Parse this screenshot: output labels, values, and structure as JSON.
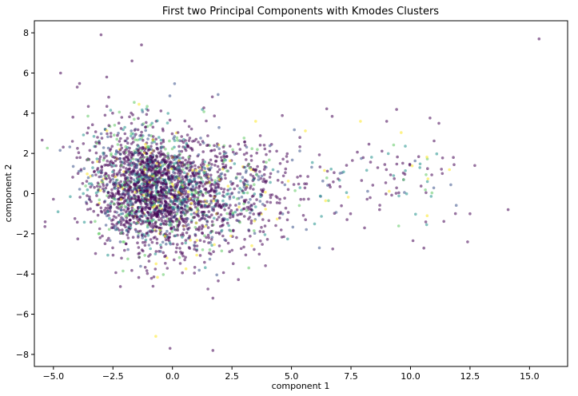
{
  "chart_data": {
    "type": "scatter",
    "title": "First two Principal Components with Kmodes Clusters",
    "xlabel": "component 1",
    "ylabel": "component 2",
    "xlim": [
      -5.8,
      16.6
    ],
    "ylim": [
      -8.6,
      8.6
    ],
    "xticks": [
      -5.0,
      -2.5,
      0.0,
      2.5,
      5.0,
      7.5,
      10.0,
      12.5,
      15.0
    ],
    "xtick_labels": [
      "−5.0",
      "−2.5",
      "0.0",
      "2.5",
      "5.0",
      "7.5",
      "10.0",
      "12.5",
      "15.0"
    ],
    "yticks": [
      -8,
      -6,
      -4,
      -2,
      0,
      2,
      4,
      6,
      8
    ],
    "ytick_labels": [
      "−8",
      "−6",
      "−4",
      "−2",
      "0",
      "2",
      "4",
      "6",
      "8"
    ],
    "grid": false,
    "legend": false,
    "colors": [
      "#440154",
      "#3b528b",
      "#21918c",
      "#5ec962",
      "#fde725"
    ],
    "points": [
      {
        "x": -3.0,
        "y": 7.9,
        "c": 0
      },
      {
        "x": -1.3,
        "y": 7.4,
        "c": 0
      },
      {
        "x": -1.7,
        "y": 6.6,
        "c": 0
      },
      {
        "x": -4.7,
        "y": 6.0,
        "c": 0
      },
      {
        "x": -4.0,
        "y": 5.3,
        "c": 0
      },
      {
        "x": 15.4,
        "y": 7.7,
        "c": 0
      },
      {
        "x": -4.2,
        "y": 2.6,
        "c": 0
      },
      {
        "x": -3.6,
        "y": -0.5,
        "c": 0
      },
      {
        "x": 14.1,
        "y": -0.8,
        "c": 0
      },
      {
        "x": 12.5,
        "y": -1.0,
        "c": 0
      },
      {
        "x": 12.4,
        "y": -2.4,
        "c": 0
      },
      {
        "x": 12.7,
        "y": 1.4,
        "c": 0
      },
      {
        "x": 10.7,
        "y": -1.1,
        "c": 4
      },
      {
        "x": 11.8,
        "y": 1.8,
        "c": 0
      },
      {
        "x": -0.7,
        "y": -7.1,
        "c": 4
      },
      {
        "x": -0.1,
        "y": -7.7,
        "c": 0
      },
      {
        "x": 1.7,
        "y": -7.8,
        "c": 0
      },
      {
        "x": 1.7,
        "y": -5.2,
        "c": 0
      },
      {
        "x": 7.9,
        "y": 3.6,
        "c": 4
      },
      {
        "x": 9.0,
        "y": 3.6,
        "c": 0
      },
      {
        "x": 8.7,
        "y": -0.8,
        "c": 0
      }
    ],
    "cloud": {
      "count": 2600,
      "center": [
        -0.6,
        0.2
      ],
      "spread": [
        1.4,
        1.5
      ],
      "tail_count": 260,
      "tail_x": [
        3.0,
        12.0
      ],
      "tail_y_spread": 1.3
    }
  }
}
